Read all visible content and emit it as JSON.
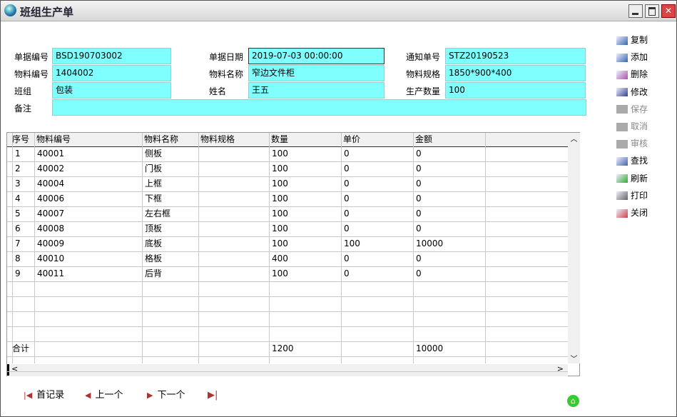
{
  "window": {
    "title": "班组生产单"
  },
  "form": {
    "fields": [
      {
        "label": "单据编号",
        "value": "BSD190703002"
      },
      {
        "label": "单据日期",
        "value": "2019-07-03 00:00:00"
      },
      {
        "label": "通知单号",
        "value": "STZ20190523"
      },
      {
        "label": "物料编号",
        "value": "1404002"
      },
      {
        "label": "物料名称",
        "value": "窄边文件柜"
      },
      {
        "label": "物料规格",
        "value": "1850*900*400"
      },
      {
        "label": "班组",
        "value": "包装"
      },
      {
        "label": "姓名",
        "value": "王五"
      },
      {
        "label": "生产数量",
        "value": "100"
      }
    ],
    "remark": {
      "label": "备注"
    }
  },
  "toolbar": {
    "buttons": [
      {
        "label": "复制",
        "enabled": true
      },
      {
        "label": "添加",
        "enabled": true
      },
      {
        "label": "删除",
        "enabled": true
      },
      {
        "label": "修改",
        "enabled": true
      },
      {
        "label": "保存",
        "enabled": false
      },
      {
        "label": "取消",
        "enabled": false
      },
      {
        "label": "审核",
        "enabled": false
      },
      {
        "label": "查找",
        "enabled": true
      },
      {
        "label": "刷新",
        "enabled": true
      },
      {
        "label": "打印",
        "enabled": true
      },
      {
        "label": "关闭",
        "enabled": true
      }
    ]
  },
  "table": {
    "columns": [
      "序号",
      "物料编号",
      "物料名称",
      "物料规格",
      "数量",
      "单价",
      "金额"
    ],
    "rows": [
      {
        "no": 1,
        "code": "40001",
        "name": "侧板",
        "qty": 100,
        "price": 0,
        "amount": 0
      },
      {
        "no": 2,
        "code": "40002",
        "name": "门板",
        "qty": 100,
        "price": 0,
        "amount": 0
      },
      {
        "no": 3,
        "code": "40004",
        "name": "上框",
        "qty": 100,
        "price": 0,
        "amount": 0
      },
      {
        "no": 4,
        "code": "40006",
        "name": "下框",
        "qty": 100,
        "price": 0,
        "amount": 0
      },
      {
        "no": 5,
        "code": "40007",
        "name": "左右框",
        "qty": 100,
        "price": 0,
        "amount": 0
      },
      {
        "no": 6,
        "code": "40008",
        "name": "顶板",
        "qty": 100,
        "price": 0,
        "amount": 0
      },
      {
        "no": 7,
        "code": "40009",
        "name": "底板",
        "qty": 100,
        "price": 100,
        "amount": 10000
      },
      {
        "no": 8,
        "code": "40010",
        "name": "格板",
        "qty": 400,
        "price": 0,
        "amount": 0
      },
      {
        "no": 9,
        "code": "40011",
        "name": "后背",
        "qty": 100,
        "price": 0,
        "amount": 0
      }
    ],
    "total": {
      "label": "合计",
      "qty": 1200,
      "amount": 10000
    }
  },
  "navigation": {
    "buttons": [
      "首记录",
      "上一个",
      "下一个"
    ]
  }
}
